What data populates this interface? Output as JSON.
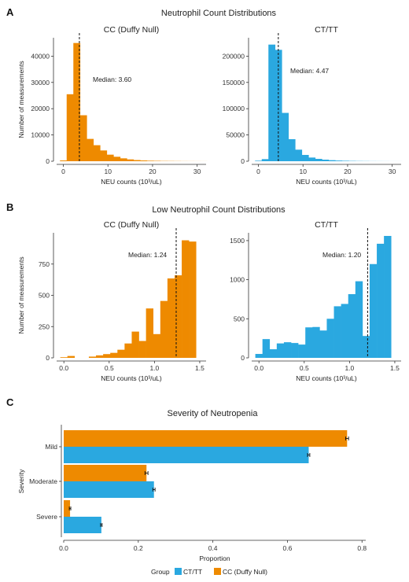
{
  "colors": {
    "cc": "#ee8a00",
    "ct": "#2aa8e0"
  },
  "chart_data": [
    {
      "panel": "A",
      "type": "bar",
      "title": "Neutrophil Count Distributions",
      "subtitle": "CC (Duffy Null)",
      "color": "#ee8a00",
      "xlabel": "NEU counts (10³/uL)",
      "ylabel": "Number of measurements",
      "xlim": [
        -1.5,
        32
      ],
      "ylim": [
        0,
        47000
      ],
      "xticks": [
        0,
        10,
        20,
        30
      ],
      "yticks": [
        0,
        10000,
        20000,
        30000,
        40000
      ],
      "bin_width": 1.5,
      "bin_start": -0.75,
      "values": [
        300,
        25500,
        45000,
        17500,
        8500,
        6100,
        4100,
        2500,
        1700,
        1100,
        700,
        450,
        300,
        200,
        150,
        100,
        80,
        60,
        40,
        30,
        20,
        15
      ],
      "median": 3.6,
      "median_label": "Median: 3.60"
    },
    {
      "panel": "",
      "type": "bar",
      "title": "",
      "subtitle": "CT/TT",
      "color": "#2aa8e0",
      "xlabel": "NEU counts (10³/uL)",
      "ylabel": "",
      "xlim": [
        -1.5,
        32
      ],
      "ylim": [
        0,
        235000
      ],
      "xticks": [
        0,
        10,
        20,
        30
      ],
      "yticks": [
        0,
        50000,
        100000,
        150000,
        200000
      ],
      "bin_width": 1.5,
      "bin_start": -0.75,
      "values": [
        1000,
        4000,
        222000,
        212000,
        92000,
        42000,
        22000,
        12000,
        7000,
        4500,
        3000,
        2000,
        1300,
        900,
        600,
        400,
        300,
        200,
        150,
        100,
        60,
        40
      ],
      "median": 4.47,
      "median_label": "Median: 4.47"
    },
    {
      "panel": "B",
      "type": "bar",
      "title": "Low Neutrophil Count Distributions",
      "subtitle": "CC (Duffy Null)",
      "color": "#ee8a00",
      "xlabel": "NEU counts (10³/uL)",
      "ylabel": "Number of measurements",
      "xlim": [
        -0.08,
        1.57
      ],
      "ylim": [
        0,
        1000
      ],
      "xticks": [
        0,
        0.5,
        1,
        1.5
      ],
      "xtick_labels": [
        "0.0",
        "0.5",
        "1.0",
        "1.5"
      ],
      "yticks": [
        0,
        250,
        500,
        750
      ],
      "bin_width": 0.0789,
      "bin_start": -0.04,
      "values": [
        5,
        15,
        0,
        0,
        10,
        20,
        30,
        40,
        65,
        115,
        210,
        135,
        395,
        190,
        455,
        635,
        660,
        940,
        930
      ],
      "median": 1.24,
      "median_label": "Median: 1.24"
    },
    {
      "panel": "",
      "type": "bar",
      "title": "",
      "subtitle": "CT/TT",
      "color": "#2aa8e0",
      "xlabel": "NEU counts (10³/uL)",
      "ylabel": "",
      "xlim": [
        -0.08,
        1.57
      ],
      "ylim": [
        0,
        1600
      ],
      "xticks": [
        0,
        0.5,
        1,
        1.5
      ],
      "xtick_labels": [
        "0.0",
        "0.5",
        "1.0",
        "1.5"
      ],
      "yticks": [
        0,
        500,
        1000,
        1500
      ],
      "bin_width": 0.0789,
      "bin_start": -0.04,
      "values": [
        50,
        240,
        110,
        185,
        200,
        190,
        170,
        390,
        395,
        350,
        500,
        660,
        690,
        815,
        980,
        280,
        1200,
        1460,
        1560
      ],
      "median": 1.2,
      "median_label": "Median: 1.20"
    },
    {
      "panel": "C",
      "type": "bar",
      "orientation": "horizontal",
      "title": "Severity of Neutropenia",
      "xlabel": "Proportion",
      "ylabel": "Severity",
      "xlim": [
        0,
        0.81
      ],
      "xticks": [
        0,
        0.2,
        0.4,
        0.6,
        0.8
      ],
      "xtick_labels": [
        "0.0",
        "0.2",
        "0.4",
        "0.6",
        "0.8"
      ],
      "categories": [
        "Mild",
        "Moderate",
        "Severe"
      ],
      "series": [
        {
          "name": "CC (Duffy Null)",
          "color": "#ee8a00",
          "values": [
            0.76,
            0.222,
            0.017
          ],
          "err": [
            0.004,
            0.004,
            0.002
          ]
        },
        {
          "name": "CT/TT",
          "color": "#2aa8e0",
          "values": [
            0.657,
            0.242,
            0.101
          ],
          "err": [
            0.003,
            0.003,
            0.002
          ]
        }
      ],
      "legend_title": "Group",
      "legend": [
        "CT/TT",
        "CC (Duffy Null)"
      ],
      "legend_position": "bottom"
    }
  ]
}
